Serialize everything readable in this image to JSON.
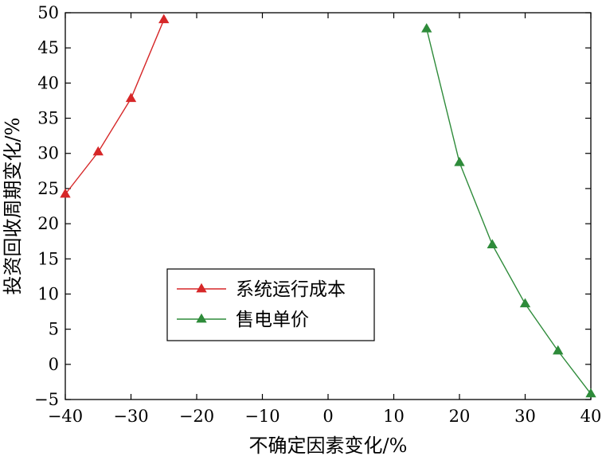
{
  "chart_data": {
    "type": "line",
    "xlabel": "不确定因素变化/%",
    "ylabel": "投资回收周期变化/%",
    "xlim": [
      -40,
      40
    ],
    "ylim": [
      -5,
      50
    ],
    "xticks": [
      -40,
      -30,
      -20,
      -10,
      0,
      10,
      20,
      30,
      40
    ],
    "yticks": [
      -5,
      0,
      5,
      10,
      15,
      20,
      25,
      30,
      35,
      40,
      45,
      50
    ],
    "grid": false,
    "legend_position": "center-left",
    "series": [
      {
        "name": "系统运行成本",
        "color": "#d62728",
        "marker": "triangle",
        "x": [
          -40,
          -35,
          -30,
          -25
        ],
        "y": [
          24.2,
          30.2,
          37.8,
          49.0
        ]
      },
      {
        "name": "售电单价",
        "color": "#2e8b3a",
        "marker": "triangle",
        "x": [
          15,
          20,
          25,
          30,
          35,
          40
        ],
        "y": [
          47.7,
          28.7,
          17.0,
          8.6,
          1.9,
          -4.2
        ]
      }
    ]
  }
}
